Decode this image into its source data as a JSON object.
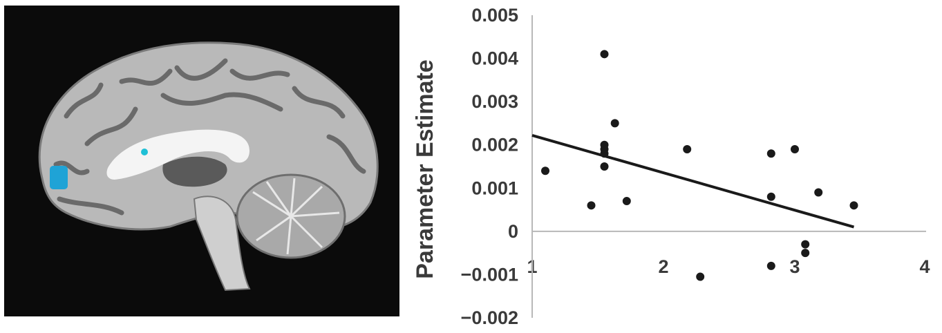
{
  "brain_image": {
    "view": "sagittal-mri-slice",
    "highlight_color": "#1fa3d6"
  },
  "chart_data": {
    "type": "scatter",
    "ylabel": "Parameter Estimate",
    "xlabel": "",
    "title": "",
    "xlim": [
      1,
      4
    ],
    "ylim": [
      -0.002,
      0.005
    ],
    "x_ticks": [
      "1",
      "2",
      "3",
      "4"
    ],
    "y_ticks": [
      "0.005",
      "0.004",
      "0.003",
      "0.002",
      "0.001",
      "0",
      "−0.001",
      "−0.002"
    ],
    "points": [
      {
        "x": 1.1,
        "y": 0.0014
      },
      {
        "x": 1.45,
        "y": 0.0006
      },
      {
        "x": 1.55,
        "y": 0.0041
      },
      {
        "x": 1.55,
        "y": 0.002
      },
      {
        "x": 1.55,
        "y": 0.0019
      },
      {
        "x": 1.55,
        "y": 0.0018
      },
      {
        "x": 1.55,
        "y": 0.0015
      },
      {
        "x": 1.63,
        "y": 0.0025
      },
      {
        "x": 1.72,
        "y": 0.0007
      },
      {
        "x": 2.18,
        "y": 0.0019
      },
      {
        "x": 2.28,
        "y": -0.00105
      },
      {
        "x": 2.82,
        "y": 0.0018
      },
      {
        "x": 2.82,
        "y": 0.0008
      },
      {
        "x": 2.82,
        "y": -0.0008
      },
      {
        "x": 3.0,
        "y": 0.0019
      },
      {
        "x": 3.08,
        "y": -0.0003
      },
      {
        "x": 3.08,
        "y": -0.0005
      },
      {
        "x": 3.18,
        "y": 0.0009
      },
      {
        "x": 3.45,
        "y": 0.0006
      }
    ],
    "trendline": {
      "x": [
        1.0,
        3.45
      ],
      "y": [
        0.00222,
        0.0001
      ]
    },
    "colors": {
      "points": "#1a1a1a",
      "line": "#1a1a1a",
      "axes": "#b8b8b8",
      "text": "#3a3a3a"
    }
  }
}
